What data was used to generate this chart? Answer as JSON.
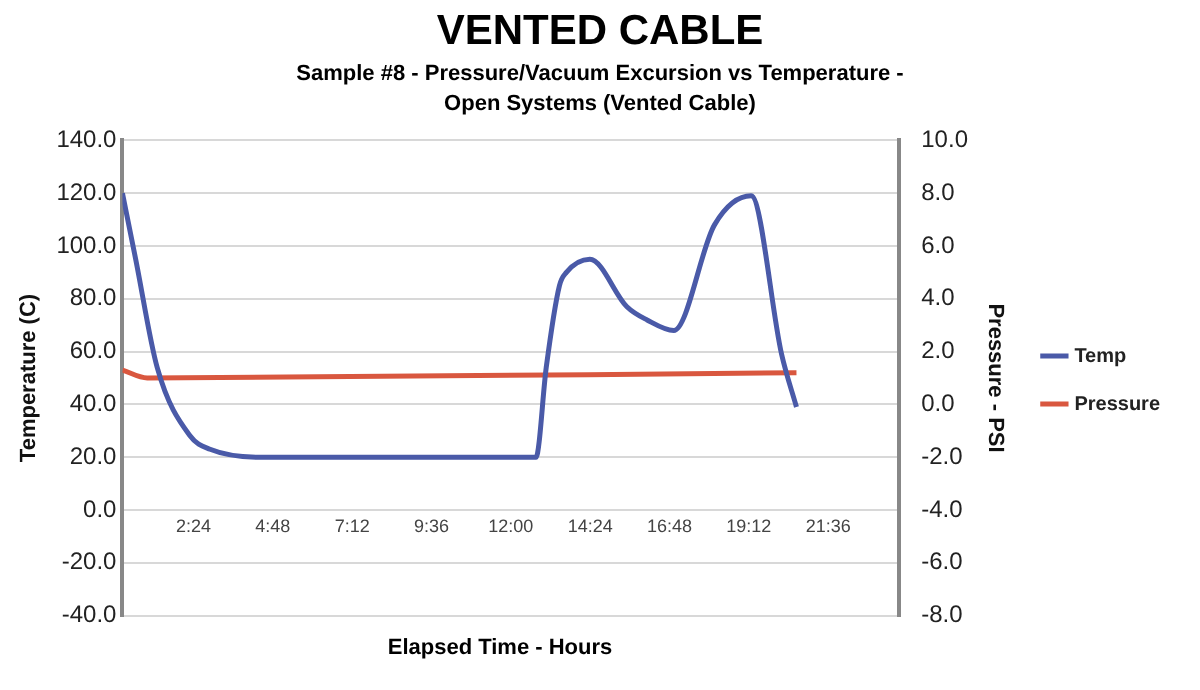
{
  "chart_data": {
    "type": "line",
    "title": "VENTED CABLE",
    "subtitle": "Sample #8 - Pressure/Vacuum Excursion vs Temperature - Open Systems (Vented Cable)",
    "xlabel": "Elapsed Time - Hours",
    "ylabel": "Temperature (C)",
    "y2label": "Pressure - PSI",
    "xlim": [
      0.25,
      23.75
    ],
    "xticks": [
      {
        "value": 2.4,
        "label": "2:24"
      },
      {
        "value": 4.8,
        "label": "4:48"
      },
      {
        "value": 7.2,
        "label": "7:12"
      },
      {
        "value": 9.6,
        "label": "9:36"
      },
      {
        "value": 12,
        "label": "12:00"
      },
      {
        "value": 14.4,
        "label": "14:24"
      },
      {
        "value": 16.8,
        "label": "16:48"
      },
      {
        "value": 19.2,
        "label": "19:12"
      },
      {
        "value": 21.6,
        "label": "21:36"
      }
    ],
    "ylim": [
      -40,
      140
    ],
    "yticks": [
      {
        "value": -40,
        "label": "-40.0"
      },
      {
        "value": -20,
        "label": "-20.0"
      },
      {
        "value": 0,
        "label": "0.0"
      },
      {
        "value": 20,
        "label": "20.0"
      },
      {
        "value": 40,
        "label": "40.0"
      },
      {
        "value": 60,
        "label": "60.0"
      },
      {
        "value": 80,
        "label": "80.0"
      },
      {
        "value": 100,
        "label": "100.0"
      },
      {
        "value": 120,
        "label": "120.0"
      },
      {
        "value": 140,
        "label": "140.0"
      }
    ],
    "y2lim": [
      -8,
      10
    ],
    "y2ticks": [
      {
        "value": -8,
        "label": "-8.0"
      },
      {
        "value": -6,
        "label": "-6.0"
      },
      {
        "value": -4,
        "label": "-4.0"
      },
      {
        "value": -2,
        "label": "-2.0"
      },
      {
        "value": 0,
        "label": "0.0"
      },
      {
        "value": 2,
        "label": "2.0"
      },
      {
        "value": 4,
        "label": "4.0"
      },
      {
        "value": 6,
        "label": "6.0"
      },
      {
        "value": 8,
        "label": "8.0"
      },
      {
        "value": 10,
        "label": "10.0"
      }
    ],
    "grid": "y",
    "legend": "right",
    "marker": "none",
    "line_style": "solid",
    "series": [
      {
        "name": "Temp",
        "color": "#4a5aa8",
        "x": [
          0.25,
          0.65,
          1.3,
          2.3,
          2.9,
          4.4,
          12.76,
          13.07,
          13.47,
          13.68,
          14.39,
          15.51,
          16.12,
          16.93,
          18.16,
          19.27,
          20.19,
          20.64
        ],
        "values": [
          120,
          95,
          54,
          28,
          23,
          20,
          20,
          54,
          85,
          90,
          95,
          77,
          72,
          68,
          108,
          119,
          59,
          39
        ]
      },
      {
        "name": "Pressure",
        "color": "#d9573f",
        "axis": "y2",
        "x": [
          0.25,
          1.0,
          20.64
        ],
        "values": [
          1.3,
          1.0,
          1.2
        ]
      }
    ]
  }
}
